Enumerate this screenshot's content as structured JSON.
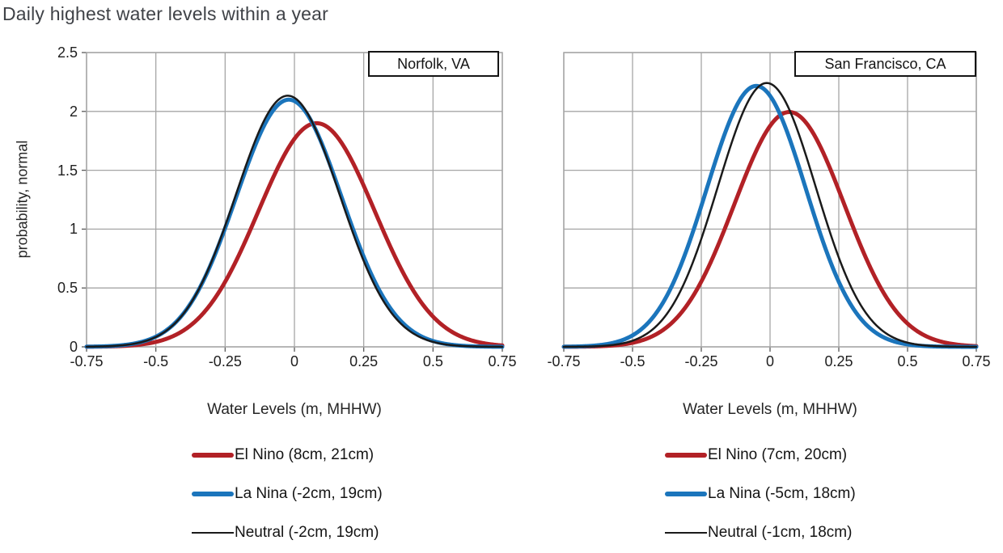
{
  "page": {
    "title": "Daily highest water levels within a year"
  },
  "colors": {
    "el_nino": "#b22126",
    "la_nina": "#1b75bc",
    "neutral": "#1a1a1a",
    "grid": "#a6a6a6",
    "tick_mark": "#595959",
    "text": "#262626"
  },
  "chart_data": [
    {
      "type": "line",
      "curve_model": "normal_pdf",
      "station": "Norfolk, VA",
      "xlabel": "Water Levels (m, MHHW)",
      "ylabel": "probability, normal",
      "xlim": [
        -0.75,
        0.75
      ],
      "ylim": [
        0,
        2.5
      ],
      "x_ticks": [
        "-0.75",
        "-0.5",
        "-0.25",
        "0",
        "0.25",
        "0.5",
        "0.75"
      ],
      "y_ticks": [
        "0",
        "0.5",
        "1",
        "1.5",
        "2",
        "2.5"
      ],
      "grid": "on",
      "legend_position": "below",
      "series": [
        {
          "name": "El Nino",
          "legend": "El Nino (8cm, 21cm)",
          "mean_cm": 8,
          "sd_cm": 21,
          "color": "#b22126",
          "width": 5
        },
        {
          "name": "La Nina",
          "legend": "La Nina (-2cm, 19cm)",
          "mean_cm": -2,
          "sd_cm": 19,
          "color": "#1b75bc",
          "width": 5
        },
        {
          "name": "Neutral",
          "legend": "Neutral (-2cm, 19cm)",
          "mean_cm": -2.4,
          "sd_cm": 18.7,
          "color": "#1a1a1a",
          "width": 2.5
        }
      ]
    },
    {
      "type": "line",
      "curve_model": "normal_pdf",
      "station": "San Francisco, CA",
      "xlabel": "Water Levels (m, MHHW)",
      "ylabel": "",
      "xlim": [
        -0.75,
        0.75
      ],
      "ylim": [
        0,
        2.5
      ],
      "x_ticks": [
        "-0.75",
        "-0.5",
        "-0.25",
        "0",
        "0.25",
        "0.5",
        "0.75"
      ],
      "y_ticks": [
        "0",
        "0.5",
        "1",
        "1.5",
        "2",
        "2.5"
      ],
      "grid": "on",
      "legend_position": "below",
      "series": [
        {
          "name": "El Nino",
          "legend": "El Nino (7cm, 20cm)",
          "mean_cm": 7,
          "sd_cm": 20,
          "color": "#b22126",
          "width": 5
        },
        {
          "name": "La Nina",
          "legend": "La Nina (-5cm, 18cm)",
          "mean_cm": -5,
          "sd_cm": 18,
          "color": "#1b75bc",
          "width": 5
        },
        {
          "name": "Neutral",
          "legend": "Neutral (-1cm, 18cm)",
          "mean_cm": -1.2,
          "sd_cm": 17.8,
          "color": "#1a1a1a",
          "width": 2.5
        }
      ]
    }
  ]
}
